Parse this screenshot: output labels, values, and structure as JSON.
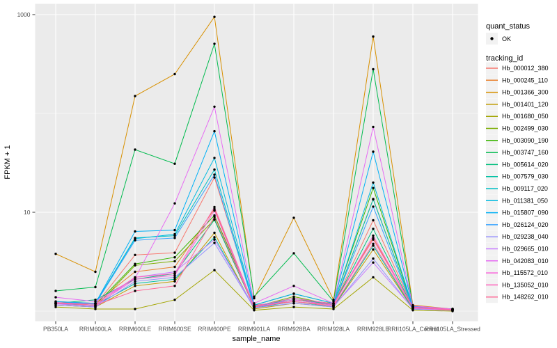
{
  "figure": {
    "background": "#FFFFFF",
    "panel_background": "#EBEBEB",
    "grid_color": "#FFFFFF",
    "tick_color": "#333333",
    "axis_text_color": "#4D4D4D",
    "point_color": "#000000"
  },
  "legend": {
    "quant_status": {
      "title": "quant_status",
      "items": [
        {
          "label": "OK",
          "symbol": "point-icon",
          "color": "#000000"
        }
      ]
    },
    "tracking_id": {
      "title": "tracking_id"
    },
    "key_background": "#F2F2F2"
  },
  "chart_data": {
    "type": "line",
    "title": "",
    "xlabel": "sample_name",
    "ylabel": "FPKM + 1",
    "y_scale": "log10",
    "ylim": [
      1,
      1000
    ],
    "grid": true,
    "legend_position": "right",
    "y_ticks": [
      {
        "label": "1000",
        "value": 1000
      },
      {
        "label": "10",
        "value": 10
      }
    ],
    "y_minor_gridlines": [
      100,
      1
    ],
    "categories": [
      "PB350LA",
      "RRIM600LA",
      "RRIM600LE",
      "RRIM600SE",
      "RRIM600PE",
      "RRIM901LA",
      "RRIM928BA",
      "RRIM928LA",
      "RRIM928LE",
      "RRII105LA_Control",
      "RRII105LA_Stressed"
    ],
    "series": [
      {
        "name": "Hb_000012_380",
        "color": "#F8766D",
        "values": [
          1.2,
          1.15,
          3.7,
          3.9,
          22.5,
          1.15,
          1.25,
          1.15,
          8.3,
          1.1,
          1.05
        ]
      },
      {
        "name": "Hb_000245_110",
        "color": "#EA8331",
        "values": [
          1.25,
          1.2,
          2.5,
          2.8,
          10.8,
          1.1,
          1.3,
          1.2,
          5.5,
          1.1,
          1.05
        ]
      },
      {
        "name": "Hb_001366_300",
        "color": "#D89000",
        "values": [
          3.8,
          2.5,
          150,
          250,
          950,
          1.35,
          8.8,
          1.3,
          600,
          1.15,
          1.05
        ]
      },
      {
        "name": "Hb_001401_120",
        "color": "#C09B00",
        "values": [
          1.15,
          1.1,
          1.8,
          2.0,
          6.2,
          1.05,
          1.2,
          1.1,
          4.2,
          1.05,
          1.02
        ]
      },
      {
        "name": "Hb_001680_050",
        "color": "#A3A500",
        "values": [
          1.1,
          1.05,
          1.05,
          1.3,
          2.6,
          1.02,
          1.1,
          1.05,
          2.2,
          1.02,
          1.0
        ]
      },
      {
        "name": "Hb_002499_030",
        "color": "#7CAE00",
        "values": [
          1.15,
          1.1,
          2.9,
          3.2,
          8.5,
          1.1,
          1.4,
          1.15,
          13.6,
          1.1,
          1.02
        ]
      },
      {
        "name": "Hb_003090_190",
        "color": "#39B600",
        "values": [
          1.2,
          1.15,
          3.0,
          3.5,
          9.3,
          1.15,
          1.5,
          1.2,
          17.6,
          1.1,
          1.05
        ]
      },
      {
        "name": "Hb_003747_160",
        "color": "#00BB4E",
        "values": [
          1.6,
          1.75,
          43.0,
          31.0,
          507,
          1.4,
          3.85,
          1.25,
          280,
          1.12,
          1.05
        ]
      },
      {
        "name": "Hb_005614_020",
        "color": "#00BF7D",
        "values": [
          1.2,
          1.3,
          2.1,
          2.4,
          8.4,
          1.1,
          1.35,
          1.15,
          6.8,
          1.08,
          1.02
        ]
      },
      {
        "name": "Hb_007579_030",
        "color": "#00C1A3",
        "values": [
          1.18,
          1.15,
          1.9,
          2.1,
          5.6,
          1.08,
          1.25,
          1.1,
          4.6,
          1.05,
          1.02
        ]
      },
      {
        "name": "Hb_009117_020",
        "color": "#00BFC4",
        "values": [
          1.2,
          1.2,
          5.5,
          5.8,
          27.0,
          1.12,
          1.3,
          1.15,
          13.5,
          1.1,
          1.03
        ]
      },
      {
        "name": "Hb_011381_050",
        "color": "#00BAE0",
        "values": [
          1.22,
          1.2,
          5.4,
          6.0,
          35.5,
          1.12,
          1.35,
          1.18,
          20.0,
          1.1,
          1.04
        ]
      },
      {
        "name": "Hb_015807_090",
        "color": "#00B0F6",
        "values": [
          1.25,
          1.2,
          6.4,
          6.6,
          66.0,
          1.15,
          1.5,
          1.2,
          41.0,
          1.12,
          1.05
        ]
      },
      {
        "name": "Hb_026124_020",
        "color": "#35A2FF",
        "values": [
          1.2,
          1.18,
          5.2,
          5.5,
          24.0,
          1.1,
          1.3,
          1.15,
          11.4,
          1.08,
          1.03
        ]
      },
      {
        "name": "Hb_029238_040",
        "color": "#9590FF",
        "values": [
          1.15,
          1.1,
          2.0,
          2.2,
          4.9,
          1.08,
          1.2,
          1.1,
          3.4,
          1.05,
          1.02
        ]
      },
      {
        "name": "Hb_029665_010",
        "color": "#C77CFF",
        "values": [
          1.18,
          1.12,
          2.2,
          2.5,
          5.3,
          1.1,
          1.25,
          1.12,
          3.1,
          1.06,
          1.02
        ]
      },
      {
        "name": "Hb_042083_010",
        "color": "#E76BF3",
        "values": [
          1.38,
          1.25,
          2.15,
          12.3,
          117,
          1.2,
          1.8,
          1.2,
          73.0,
          1.13,
          1.05
        ]
      },
      {
        "name": "Hb_115572_010",
        "color": "#FA62DB",
        "values": [
          1.2,
          1.15,
          2.1,
          2.3,
          10.4,
          1.1,
          1.3,
          1.15,
          5.8,
          1.08,
          1.03
        ]
      },
      {
        "name": "Hb_135052_010",
        "color": "#FF62BC",
        "values": [
          1.22,
          1.18,
          2.2,
          2.4,
          11.3,
          1.12,
          1.35,
          1.18,
          5.3,
          1.1,
          1.04
        ]
      },
      {
        "name": "Hb_148262_010",
        "color": "#FF6A98",
        "values": [
          1.2,
          1.15,
          1.6,
          1.8,
          9.0,
          1.1,
          1.25,
          1.12,
          4.8,
          1.08,
          1.03
        ]
      }
    ]
  }
}
